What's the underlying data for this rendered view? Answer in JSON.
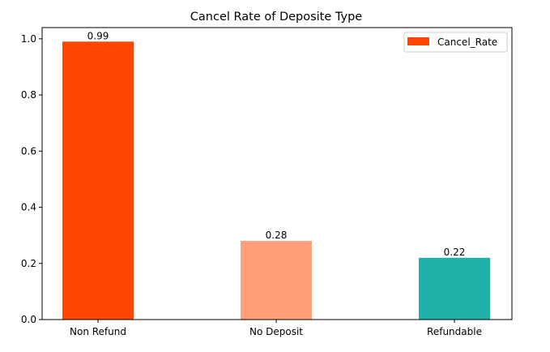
{
  "chart_data": {
    "type": "bar",
    "title": "Cancel Rate of Deposite Type",
    "xlabel": "",
    "ylabel": "",
    "categories": [
      "Non Refund",
      "No Deposit",
      "Refundable"
    ],
    "series": [
      {
        "name": "Cancel_Rate",
        "values": [
          0.99,
          0.28,
          0.22
        ],
        "data_labels": [
          "0.99",
          "0.28",
          "0.22"
        ],
        "colors": [
          "#ff4500",
          "#ffa07a",
          "#20b2aa"
        ]
      }
    ],
    "ylim": [
      0,
      1.04
    ],
    "yticks": [
      {
        "value": 0.0,
        "label": "0.0"
      },
      {
        "value": 0.2,
        "label": "0.2"
      },
      {
        "value": 0.4,
        "label": "0.4"
      },
      {
        "value": 0.6,
        "label": "0.6"
      },
      {
        "value": 0.8,
        "label": "0.8"
      },
      {
        "value": 1.0,
        "label": "1.0"
      }
    ],
    "grid": false,
    "legend_position": "top-right",
    "legend_color": "#ff4500"
  }
}
